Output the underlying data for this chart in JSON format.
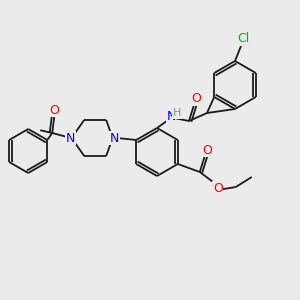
{
  "bg_color": "#ebebeb",
  "bond_color": "#1a1a1a",
  "atom_colors": {
    "N": "#0000ff",
    "O": "#ff0000",
    "Cl": "#00bb00",
    "H": "#6699aa",
    "C": "#1a1a1a"
  },
  "lw": 1.3,
  "font_size": 8,
  "figsize": [
    3.0,
    3.0
  ],
  "dpi": 100
}
